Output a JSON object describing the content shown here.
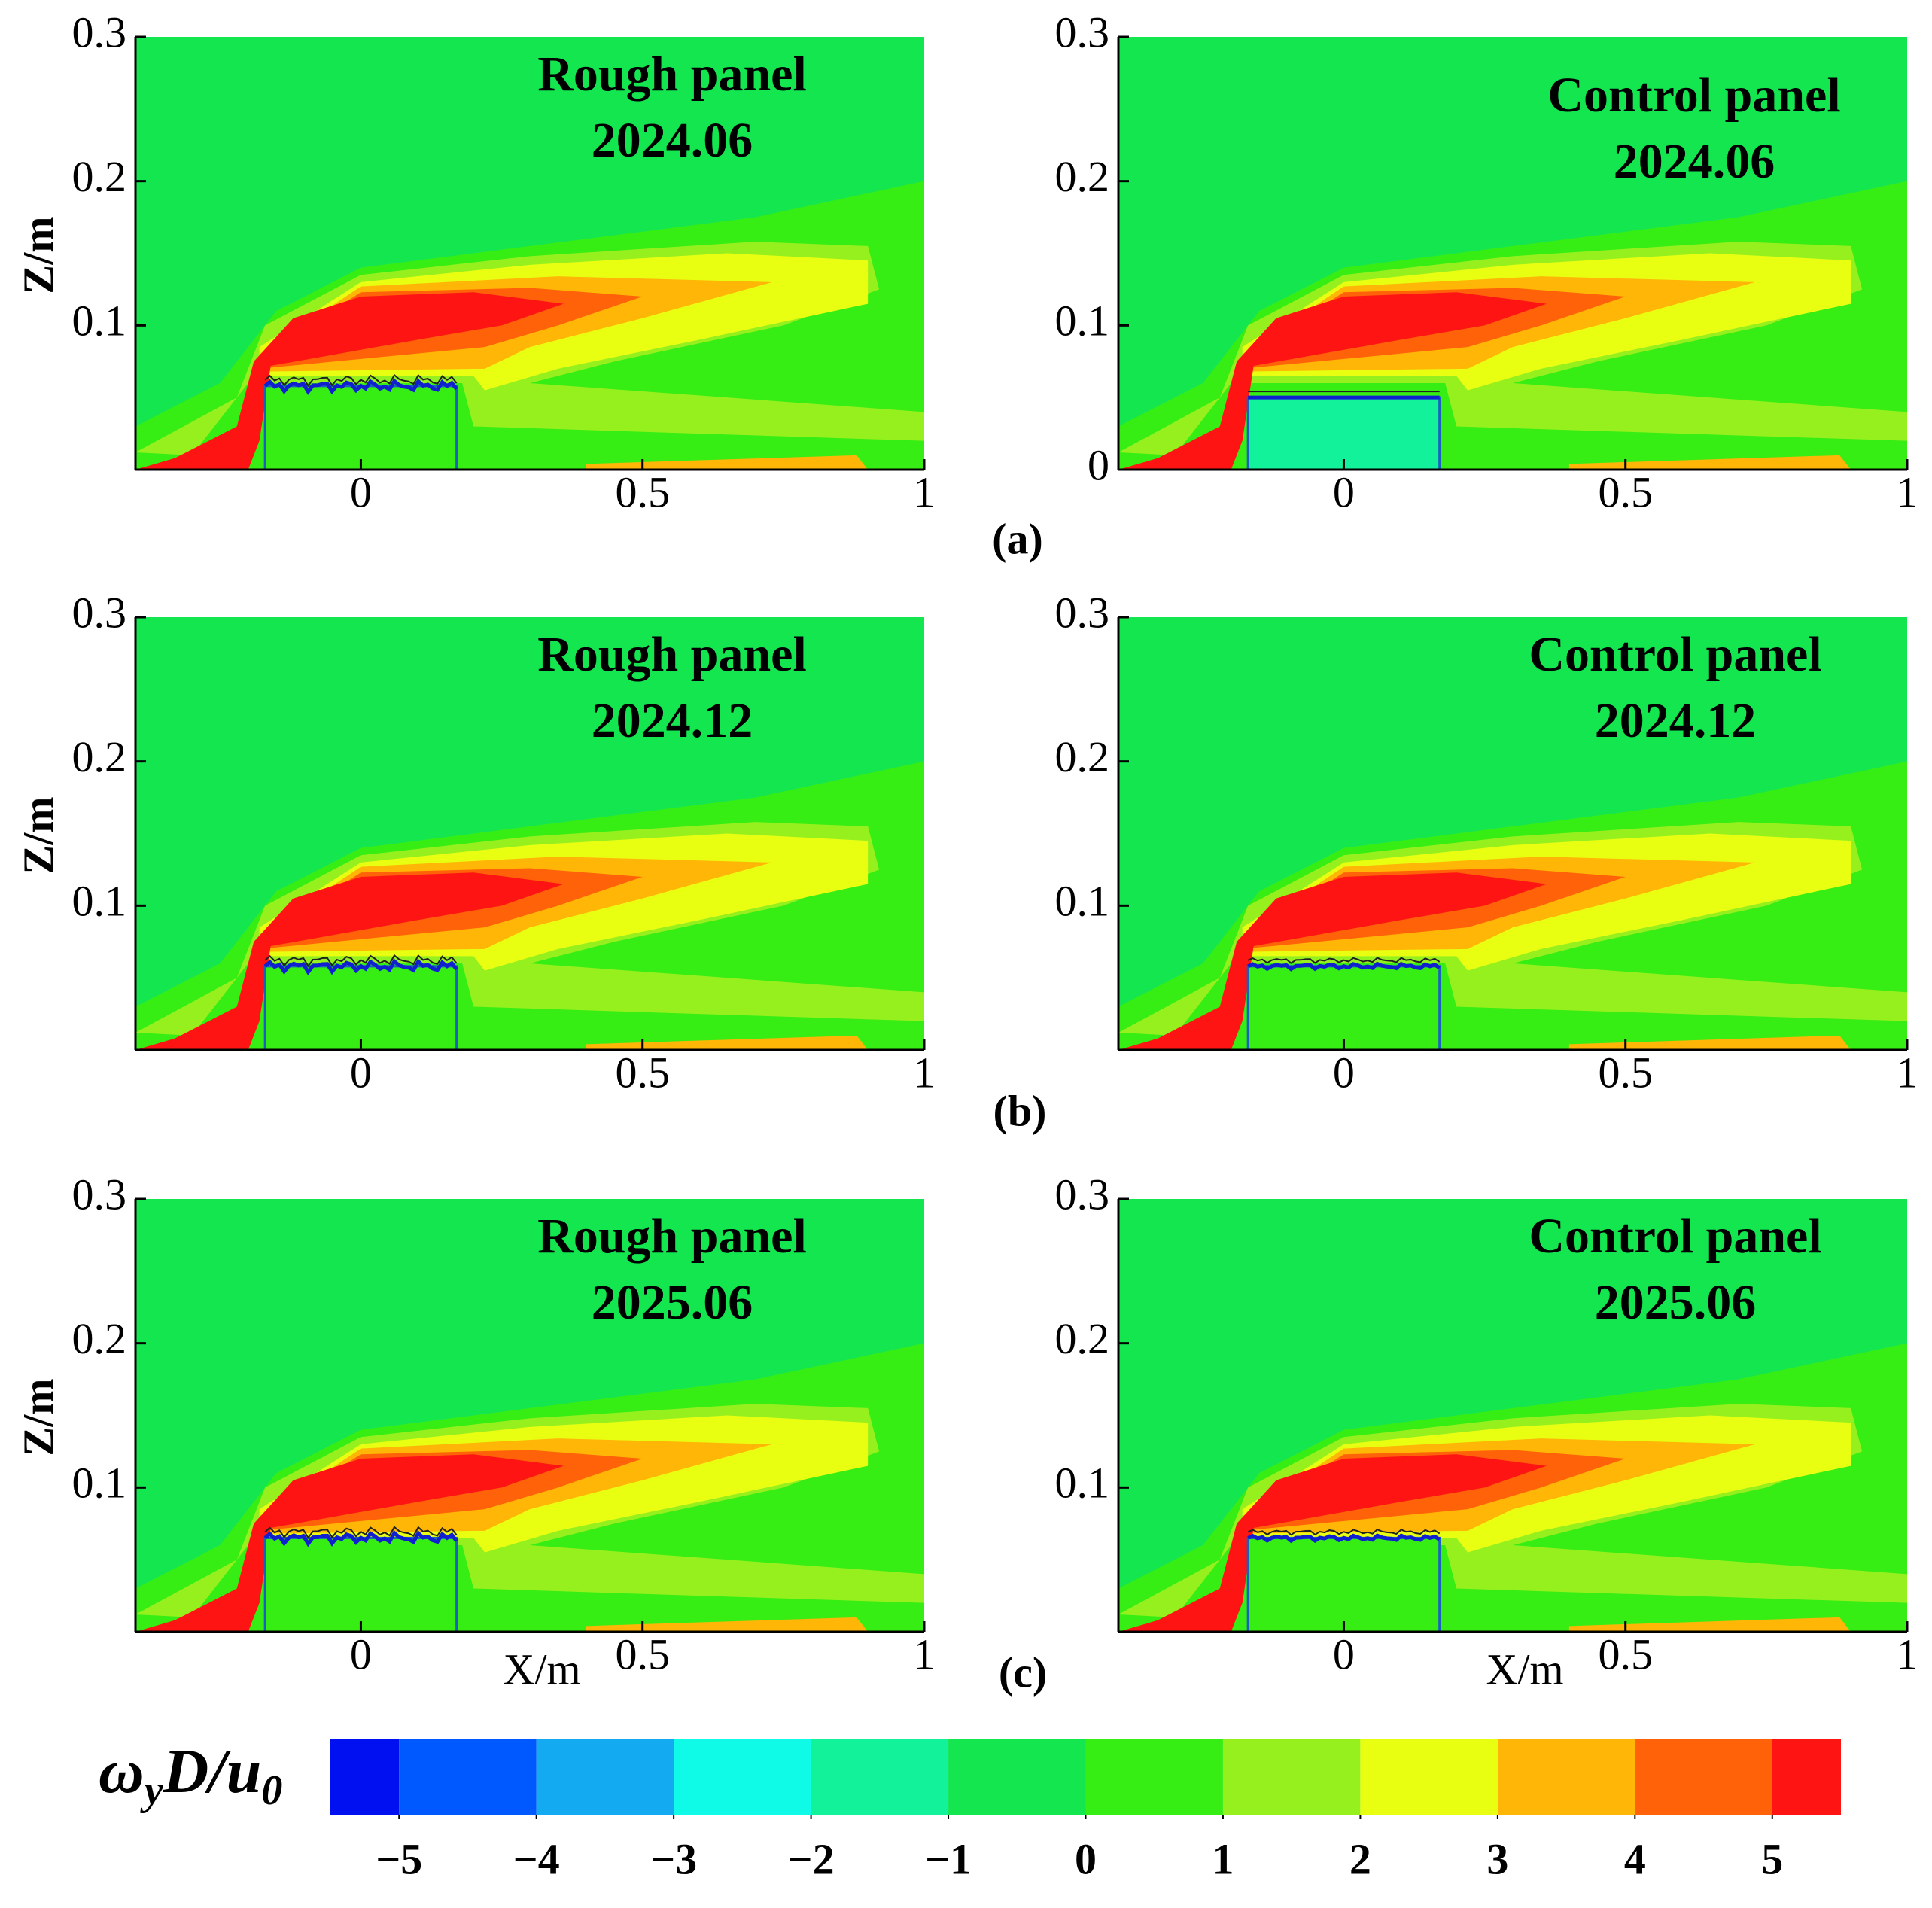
{
  "chart_data": [
    {
      "type": "contour",
      "title": "Rough panel",
      "subtitle": "2024.06",
      "y_label": "Z/m",
      "xlim": [
        -0.4,
        1
      ],
      "ylim": [
        0,
        0.3
      ],
      "xticks": [
        0,
        0.5,
        1
      ],
      "yticks": [
        0.1,
        0.2,
        0.3
      ]
    },
    {
      "type": "contour",
      "title": "Control panel",
      "subtitle": "2024.06",
      "xlim": [
        -0.4,
        1
      ],
      "ylim": [
        0,
        0.3
      ],
      "xticks": [
        0,
        0.5,
        1
      ],
      "yticks": [
        0,
        0.1,
        0.2,
        0.3
      ]
    },
    {
      "type": "contour",
      "title": "Rough panel",
      "subtitle": "2024.12",
      "y_label": "Z/m",
      "xlim": [
        -0.4,
        1
      ],
      "ylim": [
        0,
        0.3
      ],
      "xticks": [
        0,
        0.5,
        1
      ],
      "yticks": [
        0.1,
        0.2,
        0.3
      ]
    },
    {
      "type": "contour",
      "title": "Control panel",
      "subtitle": "2024.12",
      "xlim": [
        -0.4,
        1
      ],
      "ylim": [
        0,
        0.3
      ],
      "xticks": [
        0,
        0.5,
        1
      ],
      "yticks": [
        0.1,
        0.2,
        0.3
      ]
    },
    {
      "type": "contour",
      "title": "Rough panel",
      "subtitle": "2025.06",
      "y_label": "Z/m",
      "x_label": "X/m",
      "xlim": [
        -0.4,
        1
      ],
      "ylim": [
        0,
        0.3
      ],
      "xticks": [
        0,
        0.5,
        1
      ],
      "yticks": [
        0.1,
        0.2,
        0.3
      ]
    },
    {
      "type": "contour",
      "title": "Control panel",
      "subtitle": "2025.06",
      "x_label": "X/m",
      "xlim": [
        -0.4,
        1
      ],
      "ylim": [
        0,
        0.3
      ],
      "xticks": [
        0,
        0.5,
        1
      ],
      "yticks": [
        0.1,
        0.2,
        0.3
      ]
    },
    {
      "type": "colorbar",
      "label": [
        "ω",
        "y",
        "D/u",
        "0"
      ],
      "levels": [
        -5.5,
        -5,
        -4,
        -3,
        -2,
        -1,
        0,
        1,
        2,
        3,
        4,
        5,
        5.5
      ],
      "colors": [
        "#0010f0",
        "#0058ff",
        "#14aaf2",
        "#10fae8",
        "#12f29a",
        "#14e650",
        "#36ee14",
        "#96f01e",
        "#e8ff12",
        "#ffb606",
        "#ff6208",
        "#ff1414"
      ],
      "ticks": [
        {
          "value": -5,
          "label": "−5"
        },
        {
          "value": -4,
          "label": "−4"
        },
        {
          "value": -3,
          "label": "−3"
        },
        {
          "value": -2,
          "label": "−2"
        },
        {
          "value": -1,
          "label": "−1"
        },
        0,
        1,
        2,
        3,
        4,
        5
      ]
    }
  ],
  "figure_labels": [
    "(a)",
    "(b)",
    "(c)"
  ]
}
